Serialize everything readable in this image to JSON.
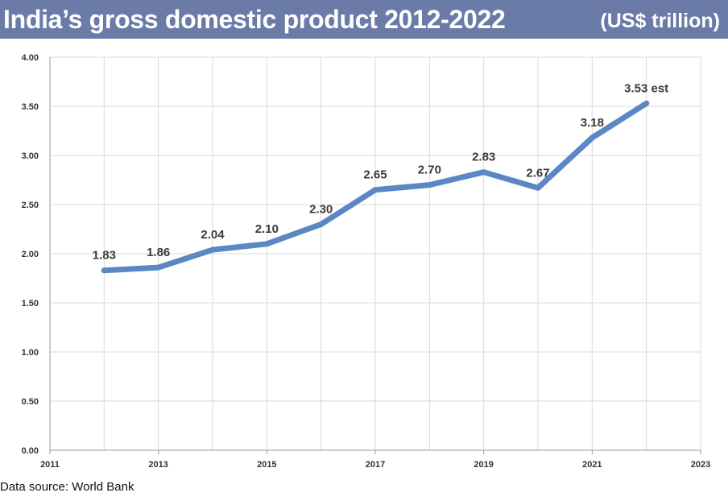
{
  "header": {
    "title": "India’s gross domestic product 2012-2022",
    "unit": "(US$ trillion)"
  },
  "footer": {
    "source": "Data source: World Bank"
  },
  "colors": {
    "header_bg": "#6b7ba8",
    "line": "#5b87c5",
    "grid": "#d9d9d9"
  },
  "chart_data": {
    "type": "line",
    "title": "India’s gross domestic product 2012-2022",
    "xlabel": "",
    "ylabel": "US$ trillion",
    "xlim": [
      2011,
      2023
    ],
    "ylim": [
      0,
      4
    ],
    "x_ticks": [
      "2011",
      "2013",
      "2015",
      "2017",
      "2019",
      "2021",
      "2023"
    ],
    "x_tick_values": [
      2011,
      2013,
      2015,
      2017,
      2019,
      2021,
      2023
    ],
    "y_ticks": [
      "0.00",
      "0.50",
      "1.00",
      "1.50",
      "2.00",
      "2.50",
      "3.00",
      "3.50",
      "4.00"
    ],
    "y_tick_values": [
      0,
      0.5,
      1,
      1.5,
      2,
      2.5,
      3,
      3.5,
      4
    ],
    "grid": true,
    "series": [
      {
        "name": "GDP",
        "x": [
          2012,
          2013,
          2014,
          2015,
          2016,
          2017,
          2018,
          2019,
          2020,
          2021,
          2022
        ],
        "values": [
          1.83,
          1.86,
          2.04,
          2.1,
          2.3,
          2.65,
          2.7,
          2.83,
          2.67,
          3.18,
          3.53
        ],
        "labels": [
          "1.83",
          "1.86",
          "2.04",
          "2.10",
          "2.30",
          "2.65",
          "2.70",
          "2.83",
          "2.67",
          "3.18",
          "3.53 est"
        ]
      }
    ]
  }
}
